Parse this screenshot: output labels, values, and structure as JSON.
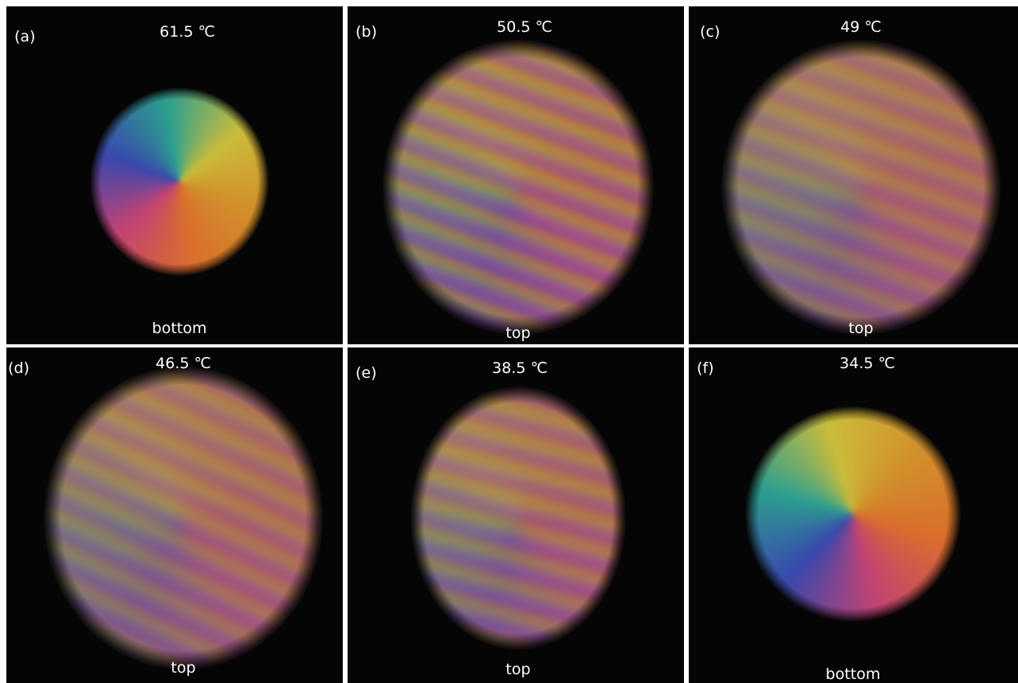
{
  "panels": [
    {
      "label": "(a)",
      "temperature": "61.5 ℃",
      "side": "bottom"
    },
    {
      "label": "(b)",
      "temperature": "50.5 ℃",
      "side": "top"
    },
    {
      "label": "(c)",
      "temperature": "49 ℃",
      "side": "top"
    },
    {
      "label": "(d)",
      "temperature": "46.5 ℃",
      "side": "top"
    },
    {
      "label": "(e)",
      "temperature": "38.5 ℃",
      "side": "top"
    },
    {
      "label": "(f)",
      "temperature": "34.5 ℃",
      "side": "bottom"
    }
  ]
}
